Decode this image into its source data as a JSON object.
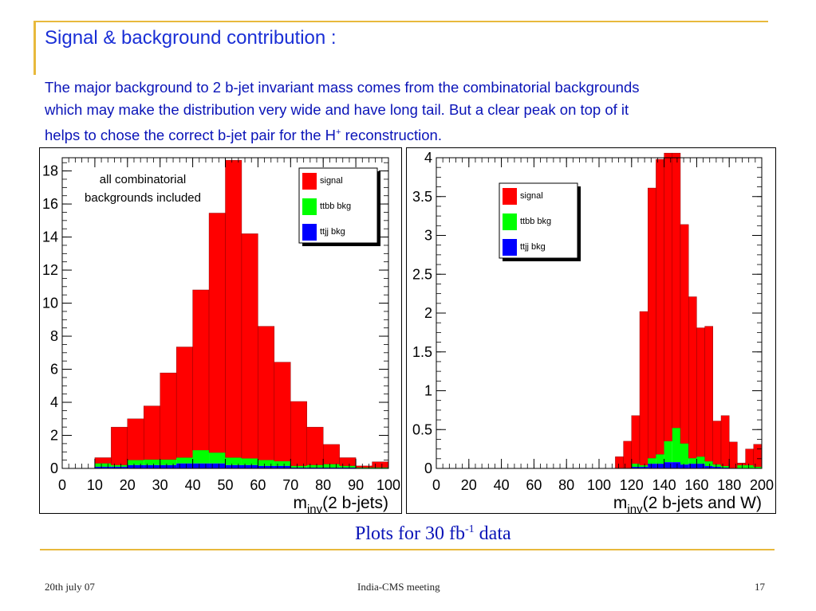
{
  "slide": {
    "title": "Signal & background contribution :",
    "paragraph_lines": [
      "The major background to 2 b-jet invariant mass comes from the combinatorial backgrounds",
      "which may make the distribution very wide and have long tail.  But a clear peak on top of it",
      "helps to  chose the correct b-jet pair for the H"
    ],
    "paragraph_sup": "+",
    "paragraph_tail": " reconstruction.",
    "caption_pre": "Plots for 30 fb",
    "caption_sup": "-1",
    "caption_post": " data",
    "footer_date": "20th july 07",
    "footer_meeting": "India-CMS meeting",
    "footer_page": "17"
  },
  "colors": {
    "signal": "#ff0000",
    "ttbb": "#00ff00",
    "ttjj": "#0000ff",
    "title": "#1a2fd6",
    "text": "#0a14b8",
    "accent_line": "#e8b93c"
  },
  "chart_data": [
    {
      "type": "bar",
      "title": "",
      "xlabel_main": "m",
      "xlabel_sub": "inv",
      "xlabel_rest": "(2 b-jets)",
      "xlim": [
        0,
        100
      ],
      "ylim": [
        0,
        18.8
      ],
      "xticks": [
        0,
        10,
        20,
        30,
        40,
        50,
        60,
        70,
        80,
        90,
        100
      ],
      "xtick_labels": [
        "0",
        "10",
        "20",
        "30",
        "40",
        "50",
        "60",
        "70",
        "80",
        "90",
        "100"
      ],
      "yticks": [
        0,
        2,
        4,
        6,
        8,
        10,
        12,
        14,
        16,
        18
      ],
      "ytick_labels": [
        "0",
        "2",
        "4",
        "6",
        "8",
        "10",
        "12",
        "14",
        "16",
        "18"
      ],
      "legend": [
        "signal",
        "ttbb bkg",
        "ttjj bkg"
      ],
      "annotation": [
        "all combinatorial",
        "backgrounds included"
      ],
      "bin_edges": [
        0,
        5,
        10,
        15,
        20,
        25,
        30,
        35,
        40,
        45,
        50,
        55,
        60,
        65,
        70,
        75,
        80,
        85,
        90,
        95,
        100
      ],
      "series": [
        {
          "name": "signal",
          "values": [
            0,
            0,
            0.35,
            2.3,
            2.5,
            3.25,
            5.25,
            6.7,
            9.7,
            14.5,
            18,
            13.6,
            8.1,
            6.0,
            3.9,
            2.3,
            1.2,
            0.5,
            0.1,
            0.35
          ]
        },
        {
          "name": "ttbb bkg",
          "values": [
            0,
            0,
            0.2,
            0.1,
            0.3,
            0.33,
            0.33,
            0.35,
            0.8,
            0.65,
            0.45,
            0.4,
            0.35,
            0.28,
            0.1,
            0.15,
            0.2,
            0.1,
            0.05,
            0.05
          ]
        },
        {
          "name": "ttjj bkg",
          "values": [
            0,
            0,
            0.1,
            0.1,
            0.2,
            0.2,
            0.2,
            0.3,
            0.3,
            0.3,
            0.2,
            0.2,
            0.15,
            0.15,
            0.05,
            0.05,
            0.05,
            0.05,
            0,
            0
          ]
        }
      ]
    },
    {
      "type": "bar",
      "title": "",
      "xlabel_main": "m",
      "xlabel_sub": "inv",
      "xlabel_rest": "(2 b-jets and W)",
      "xlim": [
        0,
        200
      ],
      "ylim": [
        0,
        4
      ],
      "xticks": [
        0,
        20,
        40,
        60,
        80,
        100,
        120,
        140,
        160,
        180,
        200
      ],
      "xtick_labels": [
        "0",
        "20",
        "40",
        "60",
        "80",
        "100",
        "120",
        "140",
        "160",
        "180",
        "200"
      ],
      "yticks": [
        0,
        0.5,
        1,
        1.5,
        2,
        2.5,
        3,
        3.5,
        4
      ],
      "ytick_labels": [
        "0",
        "0.5",
        "1",
        "1.5",
        "2",
        "2.5",
        "3",
        "3.5",
        "4"
      ],
      "legend": [
        "signal",
        "ttbb bkg",
        "ttjj bkg"
      ],
      "bin_edges": [
        110,
        115,
        120,
        125,
        130,
        135,
        140,
        145,
        150,
        155,
        160,
        165,
        170,
        175,
        180,
        185,
        190,
        195,
        200
      ],
      "series": [
        {
          "name": "signal",
          "values": [
            0.15,
            0.35,
            0.62,
            1.98,
            3.48,
            3.8,
            3.71,
            3.54,
            2.82,
            2.08,
            1.66,
            1.74,
            0.56,
            0.65,
            0.34,
            0.03,
            0.21,
            0.29
          ]
        },
        {
          "name": "ttbb bkg",
          "values": [
            0,
            0,
            0.04,
            0.02,
            0.07,
            0.12,
            0.27,
            0.44,
            0.27,
            0.07,
            0.09,
            0.06,
            0.03,
            0.02,
            0,
            0.04,
            0.04,
            0.02
          ]
        },
        {
          "name": "ttjj bkg",
          "values": [
            0,
            0,
            0.02,
            0.02,
            0.06,
            0.06,
            0.08,
            0.08,
            0.05,
            0.06,
            0.06,
            0.03,
            0.02,
            0.01,
            0,
            0,
            0,
            0
          ]
        }
      ]
    }
  ]
}
